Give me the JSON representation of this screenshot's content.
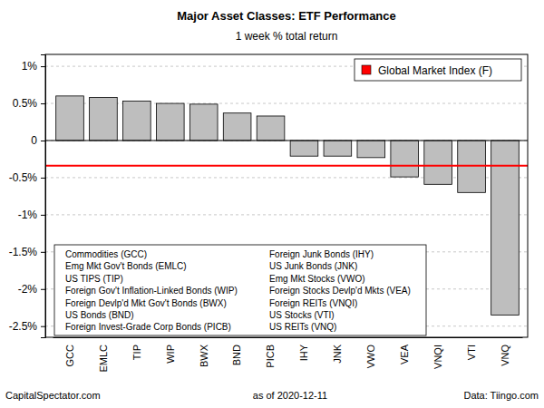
{
  "chart_data": {
    "type": "bar",
    "title": "Major Asset Classes: ETF Performance",
    "subtitle": "1 week % total return",
    "categories": [
      "GCC",
      "EMLC",
      "TIP",
      "WIP",
      "BWX",
      "BND",
      "PICB",
      "IHY",
      "JNK",
      "VWO",
      "VEA",
      "VNQI",
      "VTI",
      "VNQ"
    ],
    "values": [
      0.6,
      0.58,
      0.53,
      0.5,
      0.49,
      0.37,
      0.33,
      -0.21,
      -0.21,
      -0.23,
      -0.49,
      -0.59,
      -0.7,
      -2.35
    ],
    "color": "#bebebe",
    "ylim": [
      -2.65,
      1.16
    ],
    "yticks": [
      {
        "value": -2.5,
        "label": "-2.5%"
      },
      {
        "value": -2,
        "label": "-2%"
      },
      {
        "value": -1.5,
        "label": "-1.5%"
      },
      {
        "value": -1,
        "label": "-1%"
      },
      {
        "value": -0.5,
        "label": "-0.5%"
      },
      0,
      {
        "value": 0.5,
        "label": "0.5%"
      },
      {
        "value": 1,
        "label": "1%"
      }
    ],
    "grid": true,
    "legend": "top-right",
    "reference_line": {
      "name": "Global Market Index (F)",
      "value": -0.34,
      "color": "#ff0000"
    },
    "annotations": [
      "Commodities (GCC)",
      "Emg Mkt Gov't Bonds (EMLC)",
      "US TIPS (TIP)",
      "Foreign Gov't Inflation-Linked Bonds (WIP)",
      "Foreign Devlp'd Mkt Gov't Bonds (BWX)",
      "US Bonds (BND)",
      "Foreign Invest-Grade Corp Bonds (PICB)",
      "Foreign Junk Bonds (IHY)",
      "US Junk Bonds (JNK)",
      "Emg Mkt Stocks (VWO)",
      "Foreign Stocks Devlp'd Mkts (VEA)",
      "Foreign REITs (VNQI)",
      "US Stocks (VTI)",
      "US REITs (VNQ)"
    ],
    "footnotes": [
      "CapitalSpectator.com",
      "as of 2020-12-11",
      "Data: Tiingo.com"
    ]
  }
}
